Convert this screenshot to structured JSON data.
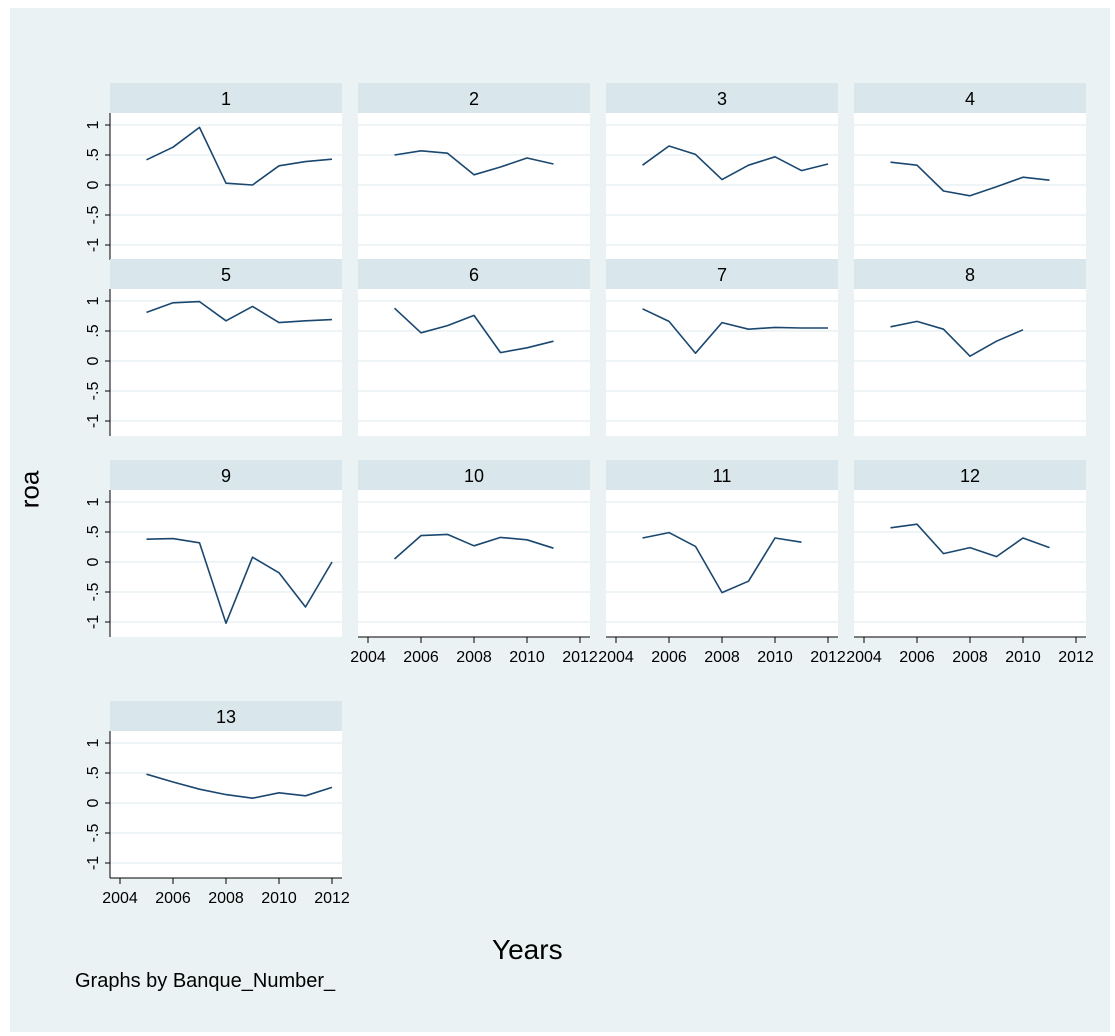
{
  "chart_data": {
    "type": "line",
    "ylabel": "roa",
    "xlabel": "Years",
    "note": "Graphs by Banque_Number_",
    "xlim": [
      2004,
      2012
    ],
    "ylim": [
      -1,
      1
    ],
    "x_ticks": [
      2004,
      2006,
      2008,
      2010,
      2012
    ],
    "y_ticks": [
      -1,
      -0.5,
      0,
      0.5,
      1
    ],
    "y_tick_labels": [
      "-1",
      "-.5",
      "0",
      ".5",
      "1"
    ],
    "grid": true,
    "line_color": "#1a476f",
    "panel_header_color": "#d9e6eb",
    "plot_region_color": "#ffffff",
    "background_color": "#eaf2f3",
    "panels": [
      {
        "title": "1",
        "x": [
          2005,
          2006,
          2007,
          2008,
          2009,
          2010,
          2011,
          2012
        ],
        "y": [
          0.42,
          0.63,
          0.96,
          0.03,
          0.0,
          0.32,
          0.39,
          0.43
        ]
      },
      {
        "title": "2",
        "x": [
          2005,
          2006,
          2007,
          2008,
          2009,
          2010,
          2011
        ],
        "y": [
          0.5,
          0.57,
          0.53,
          0.17,
          0.3,
          0.45,
          0.35
        ]
      },
      {
        "title": "3",
        "x": [
          2005,
          2006,
          2007,
          2008,
          2009,
          2010,
          2011,
          2012
        ],
        "y": [
          0.33,
          0.65,
          0.51,
          0.09,
          0.33,
          0.47,
          0.24,
          0.35
        ]
      },
      {
        "title": "4",
        "x": [
          2005,
          2006,
          2007,
          2008,
          2009,
          2010,
          2011
        ],
        "y": [
          0.38,
          0.33,
          -0.1,
          -0.18,
          -0.03,
          0.13,
          0.08
        ]
      },
      {
        "title": "5",
        "x": [
          2005,
          2006,
          2007,
          2008,
          2009,
          2010,
          2011,
          2012
        ],
        "y": [
          0.81,
          0.97,
          0.99,
          0.67,
          0.91,
          0.64,
          0.67,
          0.69
        ]
      },
      {
        "title": "6",
        "x": [
          2005,
          2006,
          2007,
          2008,
          2009,
          2010,
          2011
        ],
        "y": [
          0.88,
          0.47,
          0.59,
          0.76,
          0.14,
          0.22,
          0.33
        ]
      },
      {
        "title": "7",
        "x": [
          2005,
          2006,
          2007,
          2008,
          2009,
          2010,
          2011,
          2012
        ],
        "y": [
          0.87,
          0.66,
          0.13,
          0.64,
          0.53,
          0.56,
          0.55,
          0.55
        ]
      },
      {
        "title": "8",
        "x": [
          2005,
          2006,
          2007,
          2008,
          2009,
          2010
        ],
        "y": [
          0.57,
          0.66,
          0.53,
          0.08,
          0.33,
          0.52
        ]
      },
      {
        "title": "9",
        "x": [
          2005,
          2006,
          2007,
          2008,
          2009,
          2010,
          2011,
          2012
        ],
        "y": [
          0.38,
          0.39,
          0.32,
          -1.02,
          0.08,
          -0.18,
          -0.75,
          0.0
        ]
      },
      {
        "title": "10",
        "x": [
          2005,
          2006,
          2007,
          2008,
          2009,
          2010,
          2011
        ],
        "y": [
          0.05,
          0.44,
          0.46,
          0.27,
          0.41,
          0.37,
          0.23
        ]
      },
      {
        "title": "11",
        "x": [
          2005,
          2006,
          2007,
          2008,
          2009,
          2010,
          2011
        ],
        "y": [
          0.4,
          0.49,
          0.26,
          -0.51,
          -0.32,
          0.4,
          0.33
        ]
      },
      {
        "title": "12",
        "x": [
          2005,
          2006,
          2007,
          2008,
          2009,
          2010,
          2011
        ],
        "y": [
          0.57,
          0.63,
          0.14,
          0.24,
          0.09,
          0.4,
          0.24
        ]
      },
      {
        "title": "13",
        "x": [
          2005,
          2006,
          2007,
          2008,
          2009,
          2010,
          2011,
          2012
        ],
        "y": [
          0.48,
          0.35,
          0.23,
          0.14,
          0.08,
          0.17,
          0.12,
          0.26
        ]
      }
    ]
  }
}
